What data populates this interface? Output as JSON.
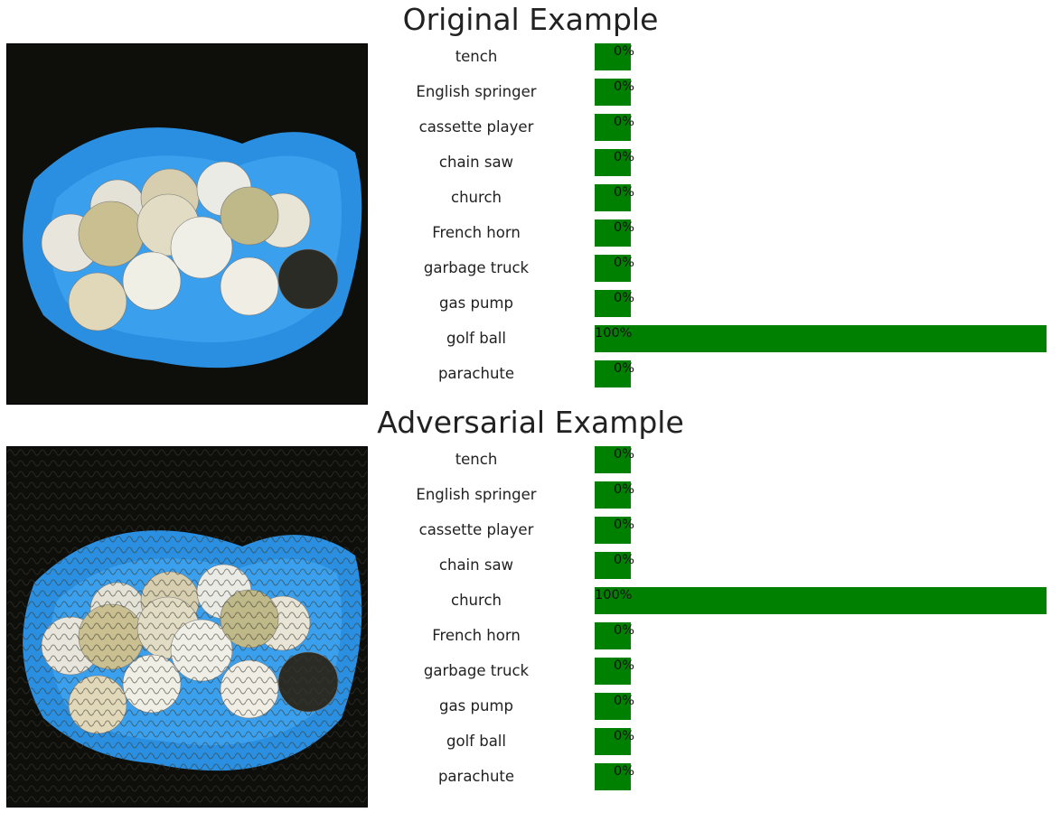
{
  "sections": [
    {
      "title": "Original Example",
      "image_icon": "golf-balls-in-blue-tray",
      "predictions": [
        {
          "label": "tench",
          "value": 0,
          "text": "0%"
        },
        {
          "label": "English springer",
          "value": 0,
          "text": "0%"
        },
        {
          "label": "cassette player",
          "value": 0,
          "text": "0%"
        },
        {
          "label": "chain saw",
          "value": 0,
          "text": "0%"
        },
        {
          "label": "church",
          "value": 0,
          "text": "0%"
        },
        {
          "label": "French horn",
          "value": 0,
          "text": "0%"
        },
        {
          "label": "garbage truck",
          "value": 0,
          "text": "0%"
        },
        {
          "label": "gas pump",
          "value": 0,
          "text": "0%"
        },
        {
          "label": "golf ball",
          "value": 100,
          "text": "100%"
        },
        {
          "label": "parachute",
          "value": 0,
          "text": "0%"
        }
      ]
    },
    {
      "title": "Adversarial Example",
      "image_icon": "golf-balls-in-blue-tray-perturbed",
      "predictions": [
        {
          "label": "tench",
          "value": 0,
          "text": "0%"
        },
        {
          "label": "English springer",
          "value": 0,
          "text": "0%"
        },
        {
          "label": "cassette player",
          "value": 0,
          "text": "0%"
        },
        {
          "label": "chain saw",
          "value": 0,
          "text": "0%"
        },
        {
          "label": "church",
          "value": 100,
          "text": "100%"
        },
        {
          "label": "French horn",
          "value": 0,
          "text": "0%"
        },
        {
          "label": "garbage truck",
          "value": 0,
          "text": "0%"
        },
        {
          "label": "gas pump",
          "value": 0,
          "text": "0%"
        },
        {
          "label": "golf ball",
          "value": 0,
          "text": "0%"
        },
        {
          "label": "parachute",
          "value": 0,
          "text": "0%"
        }
      ]
    }
  ],
  "colors": {
    "bar": "#008000",
    "tray": "#2a8fe0",
    "background": "#0d0d0a"
  }
}
